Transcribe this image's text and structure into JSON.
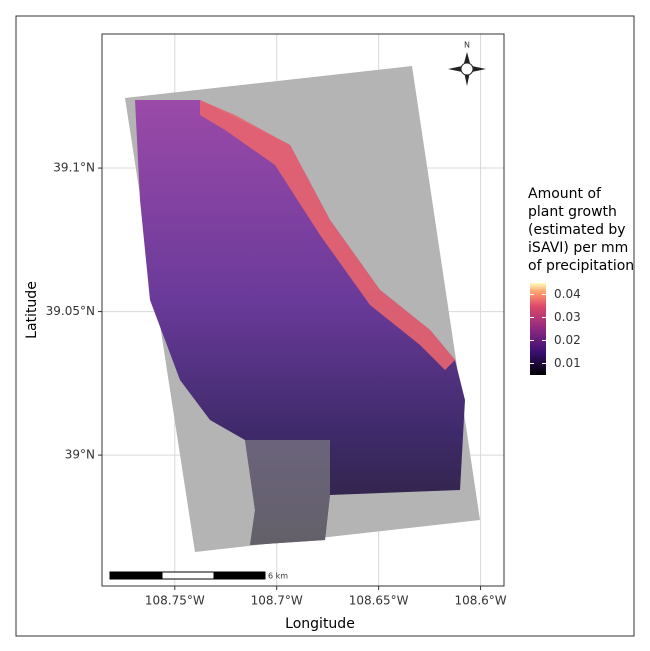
{
  "chart_data": {
    "type": "map",
    "xlabel": "Longitude",
    "ylabel": "Latitude",
    "xlim": [
      -108.7857,
      -108.5885
    ],
    "xticks": [
      {
        "value": -108.75,
        "label": "108.75°W"
      },
      {
        "value": -108.7,
        "label": "108.7°W"
      },
      {
        "value": -108.65,
        "label": "108.65°W"
      },
      {
        "value": -108.6,
        "label": "108.6°W"
      }
    ],
    "ylim": [
      38.9544,
      39.1467
    ],
    "yticks": [
      {
        "value": 39.0,
        "label": "39°N"
      },
      {
        "value": 39.05,
        "label": "39.05°N"
      },
      {
        "value": 39.1,
        "label": "39.1°N"
      }
    ],
    "grid": true,
    "legend_title": [
      "Amount of",
      "plant growth",
      "(estimated by",
      "iSAVI) per mm",
      "of precipitation"
    ],
    "colorbar_lim": [
      0.005,
      0.045
    ],
    "colorbar_ticks": [
      0.01,
      0.02,
      0.03,
      0.04
    ],
    "scale_bar_label": "6 km",
    "north_label": "N"
  }
}
